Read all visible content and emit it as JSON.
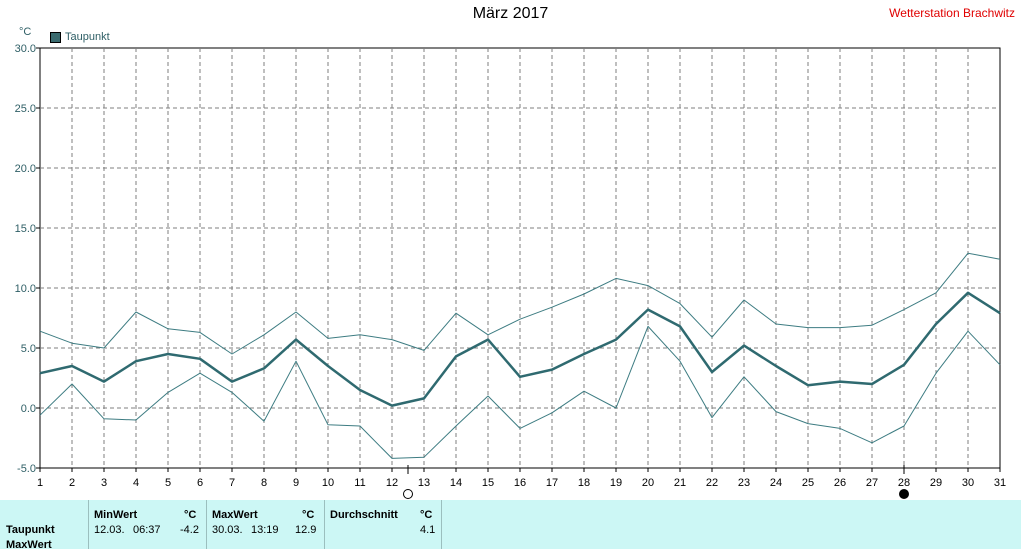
{
  "header": {
    "title": "März 2017",
    "station": "Wetterstation Brachwitz",
    "unit": "°C",
    "legend": "Taupunkt"
  },
  "chart_data": {
    "type": "line",
    "ylim": [
      -5,
      30
    ],
    "yticks": [
      "30.0",
      "25.0",
      "20.0",
      "15.0",
      "10.0",
      "5.0",
      "0.0",
      "-5.0"
    ],
    "x": [
      1,
      2,
      3,
      4,
      5,
      6,
      7,
      8,
      9,
      10,
      11,
      12,
      13,
      14,
      15,
      16,
      17,
      18,
      19,
      20,
      21,
      22,
      23,
      24,
      25,
      26,
      27,
      28,
      29,
      30,
      31
    ],
    "series": [
      {
        "name": "Taupunkt",
        "role": "avg",
        "values": [
          2.9,
          3.5,
          2.2,
          3.9,
          4.5,
          4.1,
          2.2,
          3.3,
          5.7,
          3.5,
          1.5,
          0.2,
          0.8,
          4.3,
          5.7,
          2.6,
          3.2,
          4.5,
          5.7,
          8.2,
          6.8,
          3.0,
          5.2,
          3.5,
          1.9,
          2.2,
          2.0,
          3.6,
          7.0,
          9.6,
          7.9
        ]
      },
      {
        "role": "max",
        "values": [
          6.4,
          5.4,
          5.0,
          8.0,
          6.6,
          6.3,
          4.5,
          6.1,
          8.0,
          5.8,
          6.1,
          5.7,
          4.8,
          7.9,
          6.1,
          7.4,
          8.4,
          9.5,
          10.8,
          10.2,
          8.7,
          5.9,
          9.0,
          7.0,
          6.7,
          6.7,
          6.9,
          8.2,
          9.6,
          12.9,
          12.4
        ]
      },
      {
        "role": "min",
        "values": [
          -0.6,
          2.0,
          -0.9,
          -1.0,
          1.3,
          2.9,
          1.3,
          -1.1,
          3.9,
          -1.4,
          -1.5,
          -4.2,
          -4.1,
          -1.5,
          1.0,
          -1.7,
          -0.4,
          1.4,
          0.0,
          6.8,
          3.9,
          -0.8,
          2.6,
          -0.3,
          -1.3,
          -1.7,
          -2.9,
          -1.5,
          2.9,
          6.4,
          3.6
        ]
      }
    ],
    "grid": true,
    "markers": [
      {
        "day": 12.5,
        "symbol": "new-moon"
      },
      {
        "day": 28,
        "symbol": "full-moon"
      }
    ],
    "colors": {
      "avg": "#2f6a70",
      "band": "#3d7c82",
      "grid": "#7f7f7f"
    }
  },
  "stats": {
    "row_label": "Taupunkt",
    "row_label2": "MaxWert",
    "min": {
      "header": "MinWert",
      "unit": "°C",
      "date": "12.03.",
      "time": "06:37",
      "value": "-4.2"
    },
    "max": {
      "header": "MaxWert",
      "unit": "°C",
      "date": "30.03.",
      "time": "13:19",
      "value": "12.9"
    },
    "avg": {
      "header": "Durchschnitt",
      "unit": "°C",
      "value": "4.1"
    }
  }
}
